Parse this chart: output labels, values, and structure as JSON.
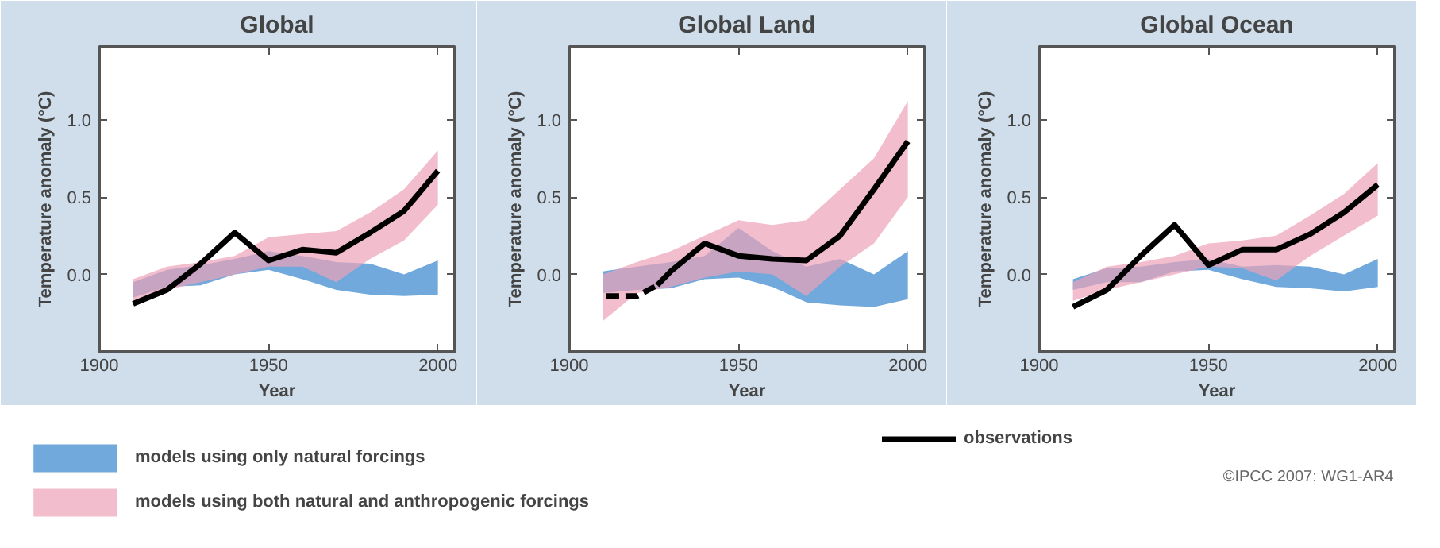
{
  "chart_data": [
    {
      "type": "line",
      "title": "Global",
      "xlabel": "Year",
      "ylabel": "Temperature anomaly (°C)",
      "xlim": [
        1900,
        2005
      ],
      "ylim": [
        -0.5,
        1.47
      ],
      "xticks": [
        1900,
        1950,
        2000
      ],
      "yticks": [
        {
          "value": 0,
          "label": "0.0"
        },
        {
          "value": 0.5,
          "label": "0.5"
        },
        {
          "value": 1,
          "label": "1.0"
        }
      ],
      "grid": false,
      "legend": "bottom",
      "annotations": [
        "©IPCC  2007: WG1-AR4"
      ],
      "x": [
        1910,
        1920,
        1930,
        1940,
        1950,
        1960,
        1970,
        1980,
        1990,
        2000
      ],
      "series": [
        {
          "type": "area",
          "name": "models using only natural forcings",
          "color": "#72a9dc",
          "values": [
            null,
            null,
            null,
            null,
            null,
            null,
            null,
            null,
            null,
            null
          ],
          "lower": [
            -0.15,
            -0.08,
            -0.07,
            0.0,
            0.03,
            -0.03,
            -0.1,
            -0.13,
            -0.14,
            -0.13
          ],
          "upper": [
            -0.05,
            0.03,
            0.06,
            0.1,
            0.15,
            0.12,
            0.08,
            0.07,
            0.0,
            0.09
          ]
        },
        {
          "type": "area",
          "name": "models using both natural and anthropogenic forcings",
          "color": "#eda3b8",
          "values": [
            null,
            null,
            null,
            null,
            null,
            null,
            null,
            null,
            null,
            null
          ],
          "lower": [
            -0.17,
            -0.1,
            -0.05,
            0.0,
            0.05,
            0.05,
            -0.05,
            0.1,
            0.22,
            0.45
          ],
          "upper": [
            -0.03,
            0.05,
            0.08,
            0.12,
            0.24,
            0.26,
            0.28,
            0.4,
            0.55,
            0.8
          ]
        },
        {
          "type": "line",
          "name": "observations",
          "color": "#000000",
          "line_style": "solid",
          "values": [
            -0.19,
            -0.1,
            0.07,
            0.27,
            0.09,
            0.16,
            0.14,
            0.27,
            0.41,
            0.67
          ]
        }
      ]
    },
    {
      "type": "line",
      "title": "Global Land",
      "xlabel": "Year",
      "ylabel": "Temperature anomaly (°C)",
      "xlim": [
        1900,
        2005
      ],
      "ylim": [
        -0.5,
        1.47
      ],
      "xticks": [
        1900,
        1950,
        2000
      ],
      "yticks": [
        {
          "value": 0,
          "label": "0.0"
        },
        {
          "value": 0.5,
          "label": "0.5"
        },
        {
          "value": 1,
          "label": "1.0"
        }
      ],
      "grid": false,
      "x": [
        1910,
        1920,
        1930,
        1940,
        1950,
        1960,
        1970,
        1980,
        1990,
        2000
      ],
      "series": [
        {
          "type": "area",
          "color": "#72a9dc",
          "values": [
            null,
            null,
            null,
            null,
            null,
            null,
            null,
            null,
            null,
            null
          ],
          "lower": [
            -0.12,
            -0.1,
            -0.09,
            -0.03,
            -0.02,
            -0.08,
            -0.18,
            -0.2,
            -0.21,
            -0.16
          ],
          "upper": [
            0.02,
            0.05,
            0.08,
            0.12,
            0.3,
            0.15,
            0.05,
            0.1,
            0.0,
            0.15
          ]
        },
        {
          "type": "area",
          "color": "#eda3b8",
          "values": [
            null,
            null,
            null,
            null,
            null,
            null,
            null,
            null,
            null,
            null
          ],
          "lower": [
            -0.3,
            -0.12,
            -0.08,
            -0.02,
            0.02,
            0.0,
            -0.14,
            0.05,
            0.2,
            0.5
          ],
          "upper": [
            0.0,
            0.08,
            0.15,
            0.25,
            0.35,
            0.32,
            0.35,
            0.55,
            0.75,
            1.12
          ]
        },
        {
          "type": "line",
          "color": "#000000",
          "line_style": "dashed",
          "x": [
            1911,
            1920,
            1926
          ],
          "values": [
            -0.14,
            -0.14,
            -0.07
          ]
        },
        {
          "type": "line",
          "color": "#000000",
          "line_style": "solid",
          "x": [
            1926,
            1930,
            1940,
            1950,
            1960,
            1970,
            1980,
            1990,
            2000
          ],
          "values": [
            -0.07,
            0.02,
            0.2,
            0.12,
            0.1,
            0.09,
            0.25,
            0.55,
            0.86
          ]
        }
      ]
    },
    {
      "type": "line",
      "title": "Global Ocean",
      "xlabel": "Year",
      "ylabel": "Temperature anomaly (°C)",
      "xlim": [
        1900,
        2005
      ],
      "ylim": [
        -0.5,
        1.47
      ],
      "xticks": [
        1900,
        1950,
        2000
      ],
      "yticks": [
        {
          "value": 0,
          "label": "0.0"
        },
        {
          "value": 0.5,
          "label": "0.5"
        },
        {
          "value": 1,
          "label": "1.0"
        }
      ],
      "grid": false,
      "x": [
        1910,
        1920,
        1930,
        1940,
        1950,
        1960,
        1970,
        1980,
        1990,
        2000
      ],
      "series": [
        {
          "type": "area",
          "color": "#72a9dc",
          "values": [
            null,
            null,
            null,
            null,
            null,
            null,
            null,
            null,
            null,
            null
          ],
          "lower": [
            -0.1,
            -0.05,
            -0.05,
            0.02,
            0.03,
            -0.03,
            -0.08,
            -0.09,
            -0.11,
            -0.08
          ],
          "upper": [
            -0.03,
            0.04,
            0.05,
            0.08,
            0.1,
            0.05,
            0.06,
            0.05,
            0.0,
            0.1
          ]
        },
        {
          "type": "area",
          "color": "#eda3b8",
          "values": [
            null,
            null,
            null,
            null,
            null,
            null,
            null,
            null,
            null,
            null
          ],
          "lower": [
            -0.17,
            -0.1,
            -0.05,
            0.0,
            0.05,
            0.04,
            -0.04,
            0.12,
            0.25,
            0.38
          ],
          "upper": [
            -0.05,
            0.05,
            0.08,
            0.12,
            0.2,
            0.22,
            0.25,
            0.38,
            0.52,
            0.72
          ]
        },
        {
          "type": "line",
          "color": "#000000",
          "line_style": "solid",
          "values": [
            -0.21,
            -0.1,
            0.12,
            0.32,
            0.06,
            0.16,
            0.16,
            0.26,
            0.4,
            0.58
          ]
        }
      ]
    }
  ]
}
